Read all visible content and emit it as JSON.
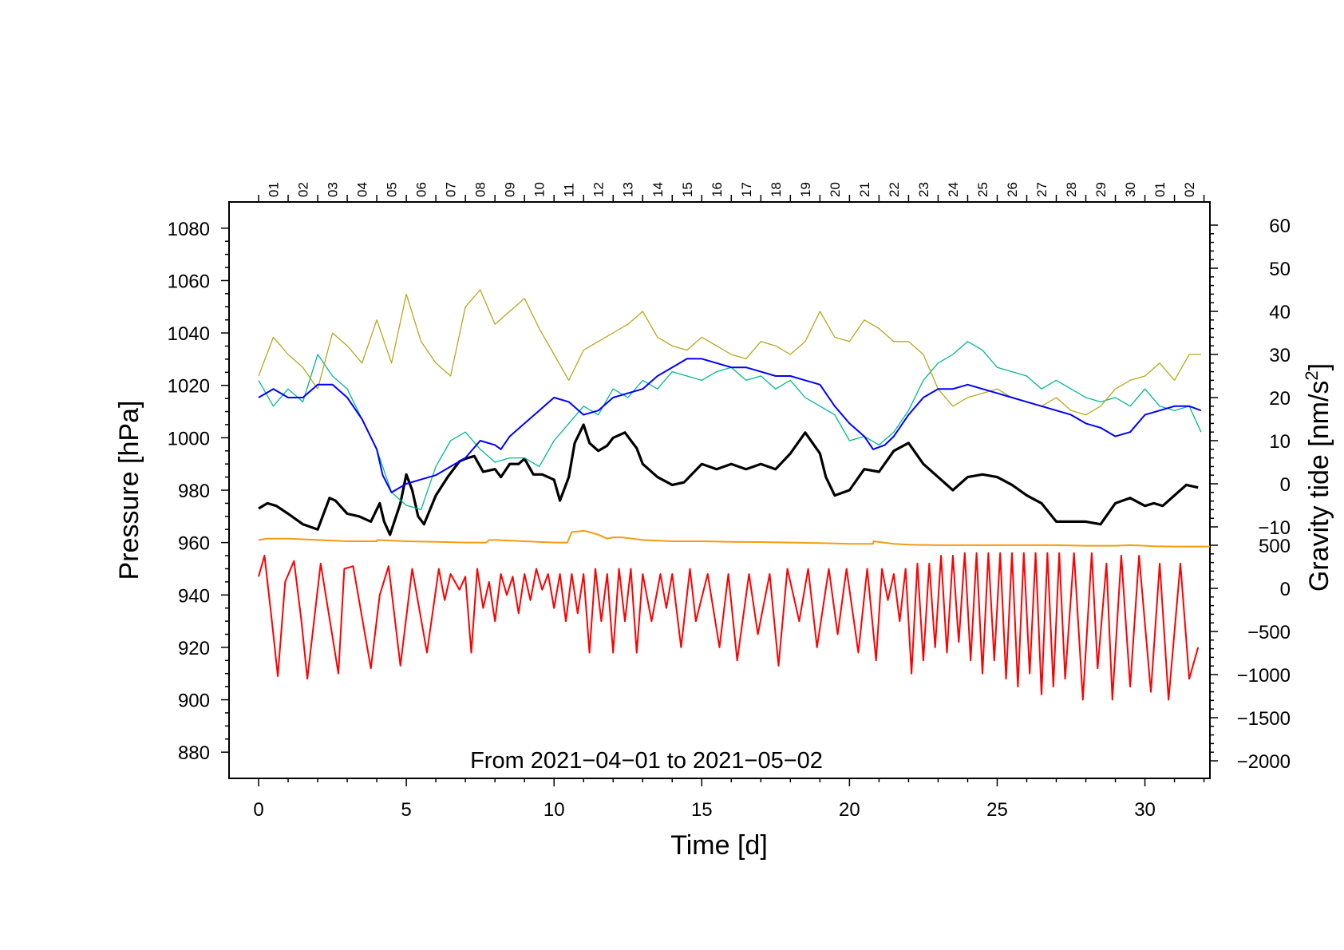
{
  "chart_data": {
    "type": "line",
    "caption": "From 2021−04−01 to 2021−05−02",
    "xlabel": "Time [d]",
    "ylabel_left": "Pressure [hPa]",
    "ylabel_right_base": "Gravity tide [nm/s",
    "ylabel_right_sup": "2",
    "ylabel_right_end": "]",
    "xlim": [
      -1,
      32.2
    ],
    "ylim_left": [
      870,
      1090
    ],
    "x_ticks": [
      "0",
      "5",
      "10",
      "15",
      "20",
      "25",
      "30"
    ],
    "y_left_ticks": [
      "880",
      "900",
      "920",
      "940",
      "960",
      "980",
      "1000",
      "1020",
      "1040",
      "1060",
      "1080"
    ],
    "y_right_upper_ticks": [
      "60",
      "50",
      "40",
      "30",
      "20",
      "10",
      "0",
      "−10"
    ],
    "y_right_lower_ticks": [
      "500",
      "0",
      "−500",
      "−1000",
      "−1500",
      "−2000"
    ],
    "day_labels": [
      "01",
      "02",
      "03",
      "04",
      "05",
      "06",
      "07",
      "08",
      "09",
      "10",
      "11",
      "12",
      "13",
      "14",
      "15",
      "16",
      "17",
      "18",
      "19",
      "20",
      "21",
      "22",
      "23",
      "24",
      "25",
      "26",
      "27",
      "28",
      "29",
      "30",
      "01",
      "02"
    ],
    "series": [
      {
        "name": "pressure",
        "color": "#000000",
        "axis": "left",
        "x": [
          0,
          0.3,
          0.6,
          1,
          1.5,
          2,
          2.4,
          2.6,
          3,
          3.4,
          3.8,
          4.1,
          4.25,
          4.45,
          4.8,
          5,
          5.2,
          5.4,
          5.6,
          6,
          6.4,
          6.8,
          7,
          7.3,
          7.6,
          8,
          8.2,
          8.5,
          8.8,
          9,
          9.3,
          9.6,
          10,
          10.2,
          10.5,
          10.7,
          11,
          11.2,
          11.5,
          11.8,
          12,
          12.4,
          12.8,
          13,
          13.5,
          14,
          14.4,
          15,
          15.5,
          16,
          16.5,
          17,
          17.5,
          18,
          18.5,
          19,
          19.2,
          19.5,
          20,
          20.5,
          21,
          21.5,
          22,
          22.5,
          23,
          23.5,
          24,
          24.5,
          25,
          25.5,
          26,
          26.5,
          27,
          27.5,
          28,
          28.5,
          29,
          29.5,
          30,
          30.3,
          30.6,
          31,
          31.4,
          31.8
        ],
        "y": [
          973,
          975,
          974,
          971,
          967,
          965,
          977,
          976,
          971,
          970,
          968,
          975,
          968,
          963,
          975,
          986,
          980,
          970,
          967,
          978,
          985,
          991,
          992,
          993,
          987,
          988,
          985,
          990,
          990,
          992,
          986,
          986,
          984,
          976,
          985,
          998,
          1005,
          998,
          995,
          997,
          1000,
          1002,
          996,
          990,
          985,
          982,
          983,
          990,
          988,
          990,
          988,
          990,
          988,
          994,
          1002,
          994,
          985,
          978,
          980,
          988,
          987,
          995,
          998,
          990,
          985,
          980,
          985,
          986,
          985,
          982,
          978,
          975,
          968,
          968,
          968,
          967,
          975,
          977,
          974,
          975,
          974,
          978,
          982,
          981
        ]
      },
      {
        "name": "tide-green",
        "color": "#00b894",
        "axis": "right_upper",
        "x": [
          0,
          0.5,
          1,
          1.5,
          2,
          2.5,
          3,
          3.5,
          4,
          4.5,
          5,
          5.5,
          6,
          6.5,
          7,
          7.5,
          8,
          8.5,
          9,
          9.5,
          10,
          10.5,
          11,
          11.5,
          12,
          12.5,
          13,
          13.5,
          14,
          14.5,
          15,
          15.5,
          16,
          16.5,
          17,
          17.5,
          18,
          18.5,
          19,
          19.5,
          20,
          20.5,
          21,
          21.5,
          22,
          22.5,
          23,
          23.5,
          24,
          24.5,
          25,
          25.5,
          26,
          26.5,
          27,
          27.5,
          28,
          28.5,
          29,
          29.5,
          30,
          30.5,
          31,
          31.5,
          31.9
        ],
        "y": [
          24,
          18,
          22,
          19,
          30,
          25,
          22,
          15,
          8,
          -2,
          -5,
          -6,
          4,
          10,
          12,
          8,
          5,
          6,
          6,
          4,
          10,
          14,
          18,
          16,
          22,
          20,
          24,
          22,
          26,
          25,
          24,
          26,
          27,
          24,
          25,
          22,
          24,
          20,
          18,
          16,
          10,
          11,
          9,
          12,
          17,
          24,
          28,
          30,
          33,
          31,
          27,
          26,
          25,
          22,
          24,
          22,
          20,
          19,
          20,
          18,
          22,
          18,
          17,
          18,
          12
        ]
      },
      {
        "name": "tide-olive",
        "color": "#b5a91b",
        "axis": "right_upper",
        "x": [
          0,
          0.5,
          1,
          1.5,
          2,
          2.5,
          3,
          3.5,
          4,
          4.5,
          5,
          5.5,
          6,
          6.5,
          7,
          7.5,
          8,
          8.5,
          9,
          9.5,
          10,
          10.5,
          11,
          11.5,
          12,
          12.5,
          13,
          13.5,
          14,
          14.5,
          15,
          15.5,
          16,
          16.5,
          17,
          17.5,
          18,
          18.5,
          19,
          19.5,
          20,
          20.5,
          21,
          21.5,
          22,
          22.5,
          23,
          23.5,
          24,
          24.5,
          25,
          25.5,
          26,
          26.5,
          27,
          27.5,
          28,
          28.5,
          29,
          29.5,
          30,
          30.5,
          31,
          31.5,
          31.9
        ],
        "y": [
          25,
          34,
          30,
          27,
          22,
          35,
          32,
          28,
          38,
          28,
          44,
          33,
          28,
          25,
          41,
          45,
          37,
          40,
          43,
          36,
          30,
          24,
          31,
          33,
          35,
          37,
          40,
          34,
          32,
          31,
          34,
          32,
          30,
          29,
          33,
          32,
          30,
          33,
          40,
          34,
          33,
          38,
          36,
          33,
          33,
          30,
          22,
          18,
          20,
          21,
          22,
          20,
          19,
          18,
          20,
          17,
          16,
          18,
          22,
          24,
          25,
          28,
          24,
          30,
          30
        ]
      },
      {
        "name": "tide-blue",
        "color": "#0000ff",
        "axis": "right_upper",
        "x": [
          0,
          0.5,
          1,
          1.5,
          2,
          2.5,
          3,
          3.5,
          4,
          4.2,
          4.5,
          5,
          5.5,
          6,
          6.5,
          7,
          7.5,
          8,
          8.2,
          8.5,
          9,
          9.5,
          10,
          10.5,
          11,
          11.5,
          12,
          12.5,
          13,
          13.5,
          14,
          14.5,
          15,
          15.5,
          16,
          16.5,
          17,
          17.5,
          18,
          18.5,
          19,
          19.5,
          20,
          20.5,
          20.8,
          21.2,
          21.5,
          22,
          22.5,
          23,
          23.5,
          24,
          24.5,
          25,
          25.5,
          26,
          26.5,
          27,
          27.5,
          28,
          28.5,
          29,
          29.5,
          30,
          30.5,
          31,
          31.5,
          31.9
        ],
        "y": [
          20,
          22,
          20,
          20,
          23,
          23,
          20,
          15,
          8,
          2,
          -2,
          0,
          1,
          2,
          4,
          6,
          10,
          9,
          8,
          11,
          14,
          17,
          20,
          19,
          16,
          17,
          20,
          21,
          22,
          25,
          27,
          29,
          29,
          28,
          27,
          27,
          26,
          25,
          25,
          24,
          23,
          18,
          14,
          11,
          8,
          9,
          11,
          16,
          20,
          22,
          22,
          23,
          22,
          21,
          20,
          19,
          18,
          17,
          16,
          14,
          13,
          11,
          12,
          16,
          17,
          18,
          18,
          17
        ]
      },
      {
        "name": "orange",
        "color": "#f39c12",
        "axis": "left",
        "x": [
          0,
          0.3,
          1,
          2,
          3,
          4,
          4.01,
          5,
          6,
          7,
          7.7,
          7.8,
          8,
          9,
          10,
          10.45,
          10.6,
          11,
          11.2,
          11.5,
          11.8,
          12,
          12.3,
          13,
          14,
          15,
          16,
          17,
          18,
          19,
          20,
          20.8,
          20.81,
          21.5,
          22,
          23,
          24,
          25,
          26,
          27,
          28,
          29,
          29.5,
          30,
          30.3,
          31,
          31.5,
          32.2
        ],
        "y": [
          961,
          961.5,
          961.5,
          961,
          960.5,
          960.5,
          961,
          960.5,
          960.3,
          960,
          960,
          961,
          961,
          960.5,
          960,
          960,
          964,
          964.5,
          964,
          963,
          961.5,
          962,
          962,
          961,
          960.5,
          960.5,
          960.3,
          960.2,
          960,
          959.8,
          959.5,
          959.5,
          960.5,
          959.5,
          959.2,
          959,
          959,
          959,
          959,
          959,
          958.8,
          958.8,
          959,
          958.8,
          958.6,
          958.5,
          958.5,
          958.5
        ]
      },
      {
        "name": "red-tide",
        "color": "#ff0000",
        "axis": "left",
        "x": [
          0,
          0.2,
          0.45,
          0.65,
          0.9,
          1.2,
          1.45,
          1.65,
          2.1,
          2.7,
          2.9,
          3.2,
          3.8,
          4.1,
          4.4,
          4.8,
          5.2,
          5.7,
          6.1,
          6.3,
          6.5,
          6.8,
          7,
          7.2,
          7.4,
          7.6,
          7.8,
          8,
          8.2,
          8.4,
          8.6,
          8.8,
          9,
          9.2,
          9.4,
          9.6,
          9.8,
          10,
          10.2,
          10.4,
          10.6,
          10.8,
          11,
          11.2,
          11.4,
          11.6,
          11.8,
          12,
          12.2,
          12.4,
          12.6,
          12.8,
          13,
          13.3,
          13.6,
          13.8,
          14,
          14.3,
          14.6,
          14.8,
          15.2,
          15.6,
          15.9,
          16.2,
          16.6,
          16.9,
          17.3,
          17.6,
          17.9,
          18.3,
          18.6,
          18.9,
          19.3,
          19.6,
          19.9,
          20.3,
          20.6,
          20.9,
          21.1,
          21.3,
          21.5,
          21.7,
          21.9,
          22.1,
          22.3,
          22.5,
          22.7,
          22.9,
          23.1,
          23.3,
          23.5,
          23.7,
          23.9,
          24.1,
          24.3,
          24.5,
          24.7,
          24.9,
          25.1,
          25.3,
          25.5,
          25.7,
          25.9,
          26.1,
          26.3,
          26.5,
          26.7,
          26.9,
          27.1,
          27.3,
          27.6,
          27.9,
          28.2,
          28.4,
          28.7,
          28.9,
          29.2,
          29.5,
          29.8,
          30.2,
          30.5,
          30.8,
          31.2,
          31.5,
          31.8
        ],
        "y": [
          947,
          955,
          930,
          909,
          945,
          953,
          930,
          908,
          952,
          910,
          950,
          951,
          912,
          940,
          951,
          913,
          950,
          918,
          950,
          938,
          948,
          942,
          947,
          918,
          950,
          935,
          945,
          930,
          948,
          940,
          947,
          933,
          948,
          938,
          950,
          942,
          948,
          935,
          948,
          930,
          948,
          933,
          948,
          918,
          950,
          930,
          948,
          918,
          950,
          930,
          950,
          918,
          948,
          930,
          948,
          935,
          948,
          920,
          950,
          930,
          948,
          920,
          948,
          915,
          948,
          925,
          948,
          913,
          950,
          930,
          950,
          920,
          950,
          925,
          950,
          918,
          950,
          915,
          950,
          938,
          948,
          930,
          950,
          910,
          952,
          915,
          952,
          920,
          955,
          918,
          955,
          922,
          956,
          915,
          956,
          910,
          956,
          915,
          956,
          908,
          956,
          905,
          956,
          910,
          956,
          902,
          956,
          905,
          956,
          908,
          956,
          900,
          956,
          912,
          952,
          900,
          955,
          905,
          955,
          903,
          952,
          900,
          952,
          908,
          920
        ]
      }
    ]
  }
}
